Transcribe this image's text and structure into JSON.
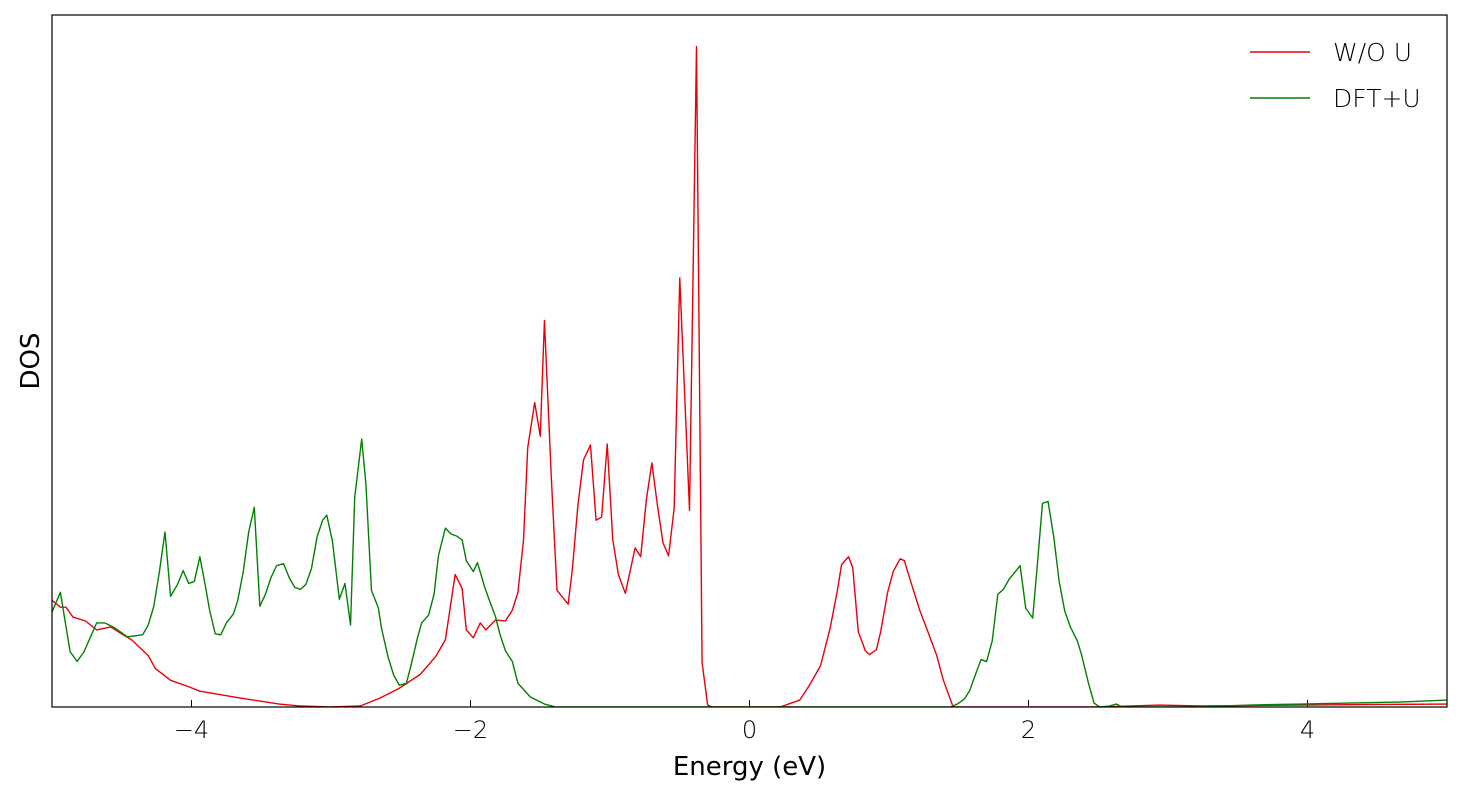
{
  "chart_data": {
    "type": "line",
    "xlabel": "Energy (eV)",
    "ylabel": "DOS",
    "xlim": [
      -5,
      5
    ],
    "ylim": [
      0,
      7
    ],
    "xticks": [
      {
        "value": -4,
        "label": "−4"
      },
      {
        "value": -2,
        "label": "−2"
      },
      0,
      2,
      4
    ],
    "yticks": [],
    "legend": "upper right",
    "series": [
      {
        "name": "W/O U",
        "color": "#e8000b",
        "x": [
          -5.0,
          -4.94,
          -4.9,
          -4.85,
          -4.76,
          -4.68,
          -4.58,
          -4.49,
          -4.43,
          -4.31,
          -4.26,
          -4.15,
          -4.01,
          -3.94,
          -3.65,
          -3.51,
          -3.37,
          -3.22,
          -3.01,
          -2.79,
          -2.65,
          -2.51,
          -2.36,
          -2.25,
          -2.18,
          -2.11,
          -2.06,
          -2.03,
          -1.98,
          -1.93,
          -1.89,
          -1.82,
          -1.75,
          -1.7,
          -1.66,
          -1.62,
          -1.59,
          -1.54,
          -1.5,
          -1.47,
          -1.42,
          -1.38,
          -1.3,
          -1.27,
          -1.23,
          -1.19,
          -1.14,
          -1.1,
          -1.06,
          -1.02,
          -0.98,
          -0.94,
          -0.89,
          -0.82,
          -0.78,
          -0.74,
          -0.7,
          -0.66,
          -0.62,
          -0.58,
          -0.54,
          -0.5,
          -0.46,
          -0.43,
          -0.38,
          -0.34,
          -0.3,
          -0.27,
          0.22,
          0.36,
          0.43,
          0.51,
          0.58,
          0.63,
          0.66,
          0.71,
          0.74,
          0.78,
          0.83,
          0.86,
          0.91,
          0.94,
          0.99,
          1.03,
          1.08,
          1.11,
          1.16,
          1.22,
          1.29,
          1.34,
          1.39,
          1.46,
          1.8,
          2.51,
          2.94,
          3.23,
          3.95,
          5.0
        ],
        "values": [
          1.08,
          1.01,
          1.01,
          0.91,
          0.87,
          0.78,
          0.81,
          0.73,
          0.68,
          0.52,
          0.39,
          0.27,
          0.2,
          0.16,
          0.09,
          0.06,
          0.03,
          0.01,
          0,
          0.01,
          0.09,
          0.19,
          0.33,
          0.51,
          0.68,
          1.34,
          1.2,
          0.78,
          0.7,
          0.85,
          0.78,
          0.88,
          0.87,
          0.98,
          1.16,
          1.69,
          2.62,
          3.08,
          2.74,
          3.91,
          2.3,
          1.18,
          1.04,
          1.39,
          2.04,
          2.5,
          2.65,
          1.89,
          1.92,
          2.66,
          1.69,
          1.34,
          1.15,
          1.61,
          1.52,
          2.09,
          2.47,
          2.04,
          1.66,
          1.53,
          2.01,
          4.34,
          3.0,
          1.99,
          6.68,
          0.45,
          0.02,
          0,
          0,
          0.07,
          0.22,
          0.42,
          0.81,
          1.18,
          1.44,
          1.52,
          1.41,
          0.76,
          0.57,
          0.53,
          0.58,
          0.76,
          1.16,
          1.37,
          1.5,
          1.48,
          1.25,
          0.98,
          0.72,
          0.53,
          0.27,
          0,
          0,
          0,
          0.02,
          0.01,
          0.02,
          0.03
        ]
      },
      {
        "name": "DFT+U",
        "color": "#008000",
        "x": [
          -5.0,
          -4.94,
          -4.87,
          -4.82,
          -4.77,
          -4.68,
          -4.62,
          -4.55,
          -4.46,
          -4.35,
          -4.31,
          -4.27,
          -4.23,
          -4.19,
          -4.15,
          -4.1,
          -4.06,
          -4.02,
          -3.98,
          -3.94,
          -3.9,
          -3.87,
          -3.83,
          -3.79,
          -3.75,
          -3.7,
          -3.67,
          -3.63,
          -3.59,
          -3.55,
          -3.51,
          -3.47,
          -3.43,
          -3.39,
          -3.34,
          -3.3,
          -3.26,
          -3.22,
          -3.18,
          -3.14,
          -3.1,
          -3.06,
          -3.03,
          -2.99,
          -2.94,
          -2.9,
          -2.86,
          -2.83,
          -2.78,
          -2.75,
          -2.71,
          -2.66,
          -2.64,
          -2.59,
          -2.55,
          -2.51,
          -2.46,
          -2.43,
          -2.38,
          -2.35,
          -2.3,
          -2.26,
          -2.23,
          -2.18,
          -2.14,
          -2.1,
          -2.06,
          -2.03,
          -1.98,
          -1.95,
          -1.9,
          -1.87,
          -1.82,
          -1.79,
          -1.75,
          -1.7,
          -1.66,
          -1.57,
          -1.47,
          -1.39,
          -0.35,
          1.44,
          1.49,
          1.54,
          1.58,
          1.62,
          1.66,
          1.7,
          1.74,
          1.78,
          1.82,
          1.86,
          1.9,
          1.94,
          1.98,
          2.03,
          2.06,
          2.1,
          2.14,
          2.18,
          2.22,
          2.26,
          2.3,
          2.35,
          2.38,
          2.43,
          2.47,
          2.51,
          2.58,
          2.63,
          2.67,
          3.23,
          3.59,
          3.95,
          4.3,
          4.66,
          5.0
        ],
        "values": [
          0.96,
          1.16,
          0.56,
          0.46,
          0.56,
          0.85,
          0.85,
          0.8,
          0.71,
          0.73,
          0.83,
          1.02,
          1.37,
          1.77,
          1.12,
          1.24,
          1.38,
          1.25,
          1.27,
          1.52,
          1.22,
          0.98,
          0.74,
          0.73,
          0.85,
          0.94,
          1.07,
          1.36,
          1.77,
          2.02,
          1.02,
          1.14,
          1.31,
          1.43,
          1.45,
          1.31,
          1.21,
          1.19,
          1.24,
          1.4,
          1.72,
          1.89,
          1.94,
          1.68,
          1.09,
          1.25,
          0.83,
          2.12,
          2.71,
          2.26,
          1.18,
          1.0,
          0.81,
          0.5,
          0.32,
          0.22,
          0.24,
          0.4,
          0.7,
          0.85,
          0.93,
          1.15,
          1.53,
          1.81,
          1.75,
          1.73,
          1.69,
          1.48,
          1.37,
          1.46,
          1.22,
          1.1,
          0.91,
          0.74,
          0.57,
          0.46,
          0.24,
          0.1,
          0.03,
          0,
          0,
          0,
          0.03,
          0.08,
          0.17,
          0.33,
          0.48,
          0.46,
          0.67,
          1.14,
          1.19,
          1.29,
          1.36,
          1.43,
          1.0,
          0.9,
          1.38,
          2.06,
          2.08,
          1.73,
          1.27,
          0.97,
          0.81,
          0.67,
          0.53,
          0.24,
          0.04,
          0,
          0.01,
          0.03,
          0,
          0,
          0.02,
          0.03,
          0.04,
          0.05,
          0.07
        ]
      }
    ]
  }
}
